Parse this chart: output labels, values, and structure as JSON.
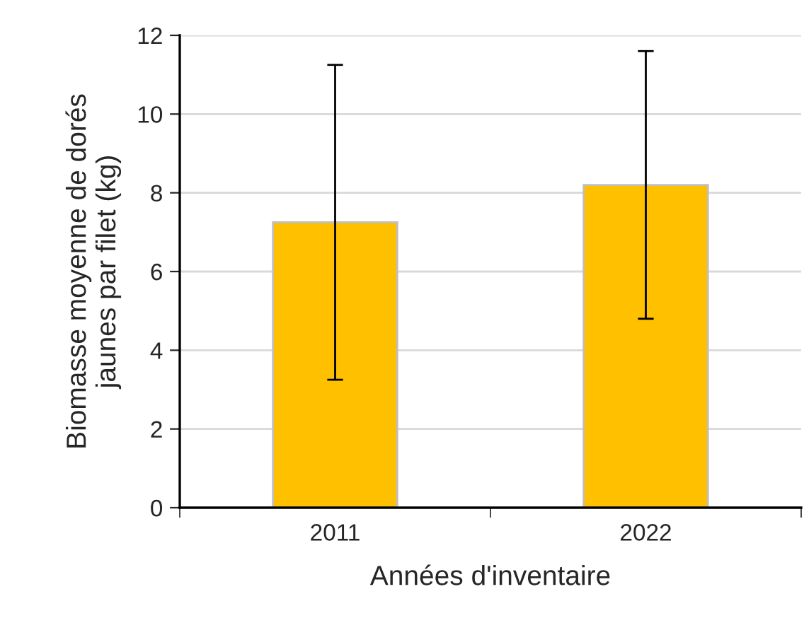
{
  "chart_data": {
    "type": "bar",
    "categories": [
      "2011",
      "2022"
    ],
    "values": [
      7.25,
      8.2
    ],
    "errors": [
      4.0,
      3.4
    ],
    "color": "#ffc000",
    "xlabel": "Années d'inventaire",
    "ylabel": "Biomasse moyenne de dorés\njaunes par filet (kg)",
    "ylim": [
      0,
      12
    ],
    "yticks": [
      0,
      2,
      4,
      6,
      8,
      10,
      12
    ],
    "grid": "y",
    "legend": false
  }
}
